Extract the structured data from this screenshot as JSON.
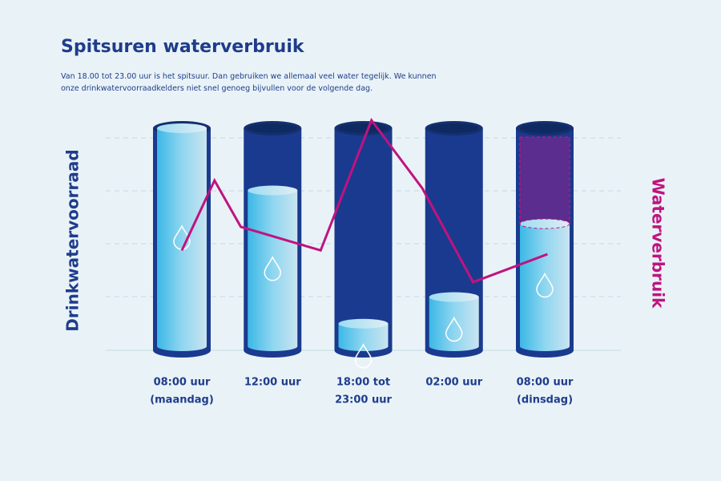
{
  "chart_data": {
    "type": "cylinder",
    "title": "Spitsuren waterverbruik",
    "subtitle": [
      "Van 18.00 tot 23.00 uur is het spitsuur. Dan gebruiken we allemaal veel water tegelijk. We kunnen",
      "onze drinkwatervoorraadkelders niet snel genoeg bijvullen voor de volgende dag."
    ],
    "y_label": "Drinkwatervoorraad",
    "y2_label": "Waterverbruik",
    "categories": [
      [
        "08:00 uur",
        "(maandag)"
      ],
      [
        "12:00 uur"
      ],
      [
        "18:00 tot",
        "23:00 uur"
      ],
      [
        "02:00 uur"
      ],
      [
        "08:00 uur",
        "(dinsdag)"
      ]
    ],
    "values": [
      100,
      72,
      12,
      24,
      57
    ],
    "shortage": [
      null,
      null,
      null,
      null,
      39
    ],
    "ylim": [
      0,
      100
    ],
    "color": "#1a3a8f",
    "water_color": "#5cc6ea",
    "shortage_color": "#5a2d8e",
    "line": {
      "x": [
        0,
        0.36,
        0.65,
        1.53,
        2.09,
        2.65,
        3.21,
        4.03
      ],
      "values": [
        45,
        76.5,
        55.6,
        45,
        103.6,
        73,
        30.7,
        43.3
      ],
      "color": "#c0137f"
    },
    "xlim": [
      0,
      4
    ]
  }
}
